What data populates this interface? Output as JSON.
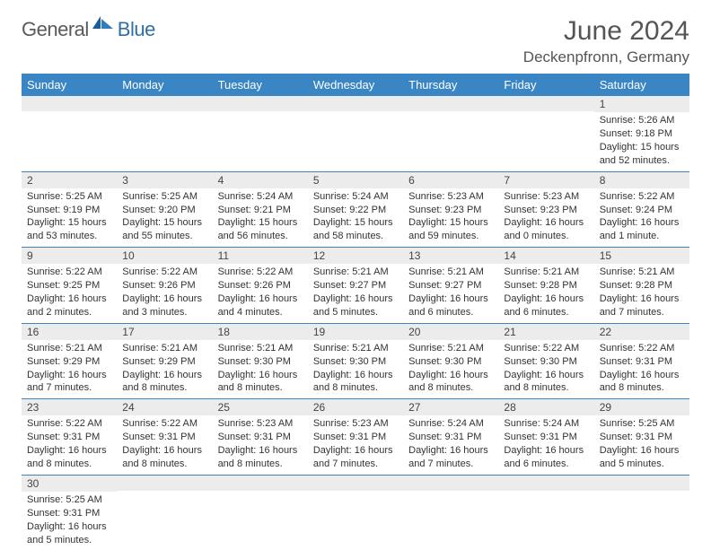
{
  "brand": {
    "part1": "General",
    "part2": "Blue"
  },
  "title": "June 2024",
  "location": "Deckenpfronn, Germany",
  "headerColor": "#3a86c4",
  "weekdays": [
    "Sunday",
    "Monday",
    "Tuesday",
    "Wednesday",
    "Thursday",
    "Friday",
    "Saturday"
  ],
  "weeks": [
    [
      {
        "n": "",
        "sr": "",
        "ss": "",
        "dl": ""
      },
      {
        "n": "",
        "sr": "",
        "ss": "",
        "dl": ""
      },
      {
        "n": "",
        "sr": "",
        "ss": "",
        "dl": ""
      },
      {
        "n": "",
        "sr": "",
        "ss": "",
        "dl": ""
      },
      {
        "n": "",
        "sr": "",
        "ss": "",
        "dl": ""
      },
      {
        "n": "",
        "sr": "",
        "ss": "",
        "dl": ""
      },
      {
        "n": "1",
        "sr": "Sunrise: 5:26 AM",
        "ss": "Sunset: 9:18 PM",
        "dl": "Daylight: 15 hours and 52 minutes."
      }
    ],
    [
      {
        "n": "2",
        "sr": "Sunrise: 5:25 AM",
        "ss": "Sunset: 9:19 PM",
        "dl": "Daylight: 15 hours and 53 minutes."
      },
      {
        "n": "3",
        "sr": "Sunrise: 5:25 AM",
        "ss": "Sunset: 9:20 PM",
        "dl": "Daylight: 15 hours and 55 minutes."
      },
      {
        "n": "4",
        "sr": "Sunrise: 5:24 AM",
        "ss": "Sunset: 9:21 PM",
        "dl": "Daylight: 15 hours and 56 minutes."
      },
      {
        "n": "5",
        "sr": "Sunrise: 5:24 AM",
        "ss": "Sunset: 9:22 PM",
        "dl": "Daylight: 15 hours and 58 minutes."
      },
      {
        "n": "6",
        "sr": "Sunrise: 5:23 AM",
        "ss": "Sunset: 9:23 PM",
        "dl": "Daylight: 15 hours and 59 minutes."
      },
      {
        "n": "7",
        "sr": "Sunrise: 5:23 AM",
        "ss": "Sunset: 9:23 PM",
        "dl": "Daylight: 16 hours and 0 minutes."
      },
      {
        "n": "8",
        "sr": "Sunrise: 5:22 AM",
        "ss": "Sunset: 9:24 PM",
        "dl": "Daylight: 16 hours and 1 minute."
      }
    ],
    [
      {
        "n": "9",
        "sr": "Sunrise: 5:22 AM",
        "ss": "Sunset: 9:25 PM",
        "dl": "Daylight: 16 hours and 2 minutes."
      },
      {
        "n": "10",
        "sr": "Sunrise: 5:22 AM",
        "ss": "Sunset: 9:26 PM",
        "dl": "Daylight: 16 hours and 3 minutes."
      },
      {
        "n": "11",
        "sr": "Sunrise: 5:22 AM",
        "ss": "Sunset: 9:26 PM",
        "dl": "Daylight: 16 hours and 4 minutes."
      },
      {
        "n": "12",
        "sr": "Sunrise: 5:21 AM",
        "ss": "Sunset: 9:27 PM",
        "dl": "Daylight: 16 hours and 5 minutes."
      },
      {
        "n": "13",
        "sr": "Sunrise: 5:21 AM",
        "ss": "Sunset: 9:27 PM",
        "dl": "Daylight: 16 hours and 6 minutes."
      },
      {
        "n": "14",
        "sr": "Sunrise: 5:21 AM",
        "ss": "Sunset: 9:28 PM",
        "dl": "Daylight: 16 hours and 6 minutes."
      },
      {
        "n": "15",
        "sr": "Sunrise: 5:21 AM",
        "ss": "Sunset: 9:28 PM",
        "dl": "Daylight: 16 hours and 7 minutes."
      }
    ],
    [
      {
        "n": "16",
        "sr": "Sunrise: 5:21 AM",
        "ss": "Sunset: 9:29 PM",
        "dl": "Daylight: 16 hours and 7 minutes."
      },
      {
        "n": "17",
        "sr": "Sunrise: 5:21 AM",
        "ss": "Sunset: 9:29 PM",
        "dl": "Daylight: 16 hours and 8 minutes."
      },
      {
        "n": "18",
        "sr": "Sunrise: 5:21 AM",
        "ss": "Sunset: 9:30 PM",
        "dl": "Daylight: 16 hours and 8 minutes."
      },
      {
        "n": "19",
        "sr": "Sunrise: 5:21 AM",
        "ss": "Sunset: 9:30 PM",
        "dl": "Daylight: 16 hours and 8 minutes."
      },
      {
        "n": "20",
        "sr": "Sunrise: 5:21 AM",
        "ss": "Sunset: 9:30 PM",
        "dl": "Daylight: 16 hours and 8 minutes."
      },
      {
        "n": "21",
        "sr": "Sunrise: 5:22 AM",
        "ss": "Sunset: 9:30 PM",
        "dl": "Daylight: 16 hours and 8 minutes."
      },
      {
        "n": "22",
        "sr": "Sunrise: 5:22 AM",
        "ss": "Sunset: 9:31 PM",
        "dl": "Daylight: 16 hours and 8 minutes."
      }
    ],
    [
      {
        "n": "23",
        "sr": "Sunrise: 5:22 AM",
        "ss": "Sunset: 9:31 PM",
        "dl": "Daylight: 16 hours and 8 minutes."
      },
      {
        "n": "24",
        "sr": "Sunrise: 5:22 AM",
        "ss": "Sunset: 9:31 PM",
        "dl": "Daylight: 16 hours and 8 minutes."
      },
      {
        "n": "25",
        "sr": "Sunrise: 5:23 AM",
        "ss": "Sunset: 9:31 PM",
        "dl": "Daylight: 16 hours and 8 minutes."
      },
      {
        "n": "26",
        "sr": "Sunrise: 5:23 AM",
        "ss": "Sunset: 9:31 PM",
        "dl": "Daylight: 16 hours and 7 minutes."
      },
      {
        "n": "27",
        "sr": "Sunrise: 5:24 AM",
        "ss": "Sunset: 9:31 PM",
        "dl": "Daylight: 16 hours and 7 minutes."
      },
      {
        "n": "28",
        "sr": "Sunrise: 5:24 AM",
        "ss": "Sunset: 9:31 PM",
        "dl": "Daylight: 16 hours and 6 minutes."
      },
      {
        "n": "29",
        "sr": "Sunrise: 5:25 AM",
        "ss": "Sunset: 9:31 PM",
        "dl": "Daylight: 16 hours and 5 minutes."
      }
    ],
    [
      {
        "n": "30",
        "sr": "Sunrise: 5:25 AM",
        "ss": "Sunset: 9:31 PM",
        "dl": "Daylight: 16 hours and 5 minutes."
      },
      {
        "n": "",
        "sr": "",
        "ss": "",
        "dl": ""
      },
      {
        "n": "",
        "sr": "",
        "ss": "",
        "dl": ""
      },
      {
        "n": "",
        "sr": "",
        "ss": "",
        "dl": ""
      },
      {
        "n": "",
        "sr": "",
        "ss": "",
        "dl": ""
      },
      {
        "n": "",
        "sr": "",
        "ss": "",
        "dl": ""
      },
      {
        "n": "",
        "sr": "",
        "ss": "",
        "dl": ""
      }
    ]
  ]
}
